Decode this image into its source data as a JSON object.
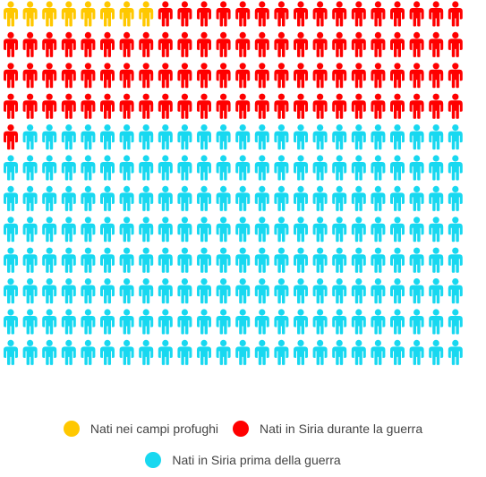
{
  "chart_data": {
    "type": "pictogram",
    "unit_icon": "person-icon",
    "columns": 24,
    "series": [
      {
        "name": "Nati nei campi profughi",
        "count": 8,
        "color": "#FFC800"
      },
      {
        "name": "Nati in Siria durante la guerra",
        "count": 89,
        "color": "#FF0000"
      },
      {
        "name": "Nati in Siria prima della guerra",
        "count": 191,
        "color": "#18D8F0"
      }
    ],
    "legend_position": "bottom"
  }
}
